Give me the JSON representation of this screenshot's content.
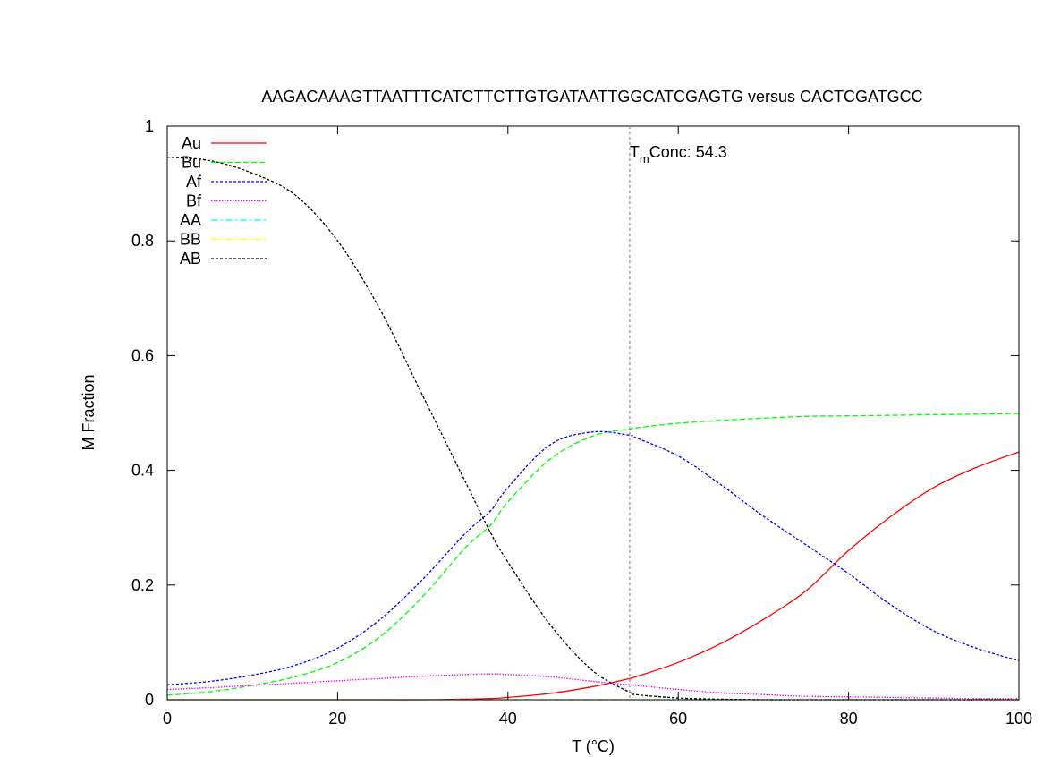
{
  "chart_data": {
    "type": "line",
    "title": "AAGACAAAGTTAATTTCATCTTCTTGTGATAATTGGCATCGAGTG versus CACTCGATGCC",
    "xlabel": "T (°C)",
    "ylabel": "M Fraction",
    "xlim": [
      0,
      100
    ],
    "ylim": [
      0,
      1
    ],
    "xticks": [
      0,
      20,
      40,
      60,
      80,
      100
    ],
    "xtick_labels": [
      "0",
      "20",
      "40",
      "60",
      "80",
      "100"
    ],
    "yticks": [
      0,
      0.2,
      0.4,
      0.6,
      0.8,
      1
    ],
    "ytick_labels": [
      "0",
      "0.2",
      "0.4",
      "0.6",
      "0.8",
      "1"
    ],
    "legend_position": "top-left",
    "grid": false,
    "annotation": {
      "x": 54.3,
      "label_main": "T",
      "label_sub": "m",
      "label_rest": "Conc: 54.3"
    },
    "x": [
      0,
      5,
      10,
      15,
      20,
      25,
      30,
      35,
      38,
      40,
      45,
      50,
      54.3,
      55,
      60,
      65,
      70,
      75,
      80,
      85,
      90,
      95,
      100
    ],
    "series": [
      {
        "name": "Au",
        "color": "#ff0000",
        "dash": "",
        "values": [
          0,
          0,
          0,
          0,
          0,
          0,
          0,
          0.001,
          0.002,
          0.004,
          0.011,
          0.023,
          0.037,
          0.04,
          0.065,
          0.098,
          0.14,
          0.19,
          0.26,
          0.32,
          0.37,
          0.405,
          0.432
        ]
      },
      {
        "name": "Bu",
        "color": "#00ff00",
        "dash": "6,3",
        "values": [
          0.008,
          0.014,
          0.025,
          0.04,
          0.065,
          0.11,
          0.18,
          0.265,
          0.305,
          0.345,
          0.42,
          0.46,
          0.472,
          0.474,
          0.482,
          0.487,
          0.491,
          0.494,
          0.495,
          0.496,
          0.497,
          0.498,
          0.499
        ]
      },
      {
        "name": "Af",
        "color": "#0000ff",
        "dash": "3,2",
        "values": [
          0.026,
          0.032,
          0.043,
          0.06,
          0.09,
          0.14,
          0.21,
          0.29,
          0.33,
          0.37,
          0.445,
          0.467,
          0.461,
          0.457,
          0.425,
          0.375,
          0.32,
          0.27,
          0.22,
          0.165,
          0.12,
          0.09,
          0.068
        ]
      },
      {
        "name": "Bf",
        "color": "#ff00ff",
        "dash": "1.5,1.5",
        "values": [
          0.018,
          0.021,
          0.025,
          0.029,
          0.033,
          0.037,
          0.041,
          0.044,
          0.045,
          0.044,
          0.04,
          0.032,
          0.026,
          0.025,
          0.018,
          0.012,
          0.009,
          0.006,
          0.005,
          0.004,
          0.003,
          0.002,
          0.002
        ]
      },
      {
        "name": "AA",
        "color": "#00ffff",
        "dash": "8,3,2,3",
        "values": [
          0,
          0,
          0,
          0,
          0,
          0,
          0,
          0,
          0,
          0,
          0,
          0,
          0,
          0,
          0,
          0,
          0,
          0,
          0,
          0,
          0,
          0,
          0
        ]
      },
      {
        "name": "BB",
        "color": "#ffff00",
        "dash": "8,3,2,3",
        "values": [
          0,
          0,
          0,
          0,
          0,
          0,
          0,
          0,
          0,
          0,
          0,
          0,
          0,
          0,
          0,
          0,
          0,
          0,
          0,
          0,
          0,
          0,
          0
        ]
      },
      {
        "name": "AB",
        "color": "#000000",
        "dash": "3,2",
        "values": [
          0.946,
          0.94,
          0.918,
          0.88,
          0.8,
          0.68,
          0.53,
          0.38,
          0.29,
          0.24,
          0.13,
          0.05,
          0.013,
          0.009,
          0.003,
          0.001,
          0,
          0,
          0,
          0,
          0,
          0,
          0
        ]
      }
    ]
  }
}
